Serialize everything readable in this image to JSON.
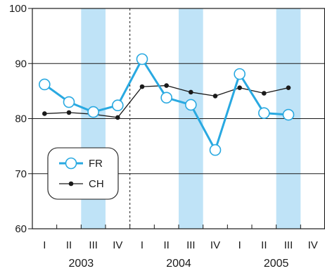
{
  "chart_data": {
    "type": "line",
    "title": "",
    "xlabel": "",
    "ylabel": "",
    "ylim": [
      60,
      100
    ],
    "yticks": [
      60,
      70,
      80,
      90,
      100
    ],
    "x": [
      "I",
      "II",
      "III",
      "IV",
      "I",
      "II",
      "III",
      "IV",
      "I",
      "II",
      "III",
      "IV"
    ],
    "years": [
      "2003",
      "2004",
      "2005"
    ],
    "grid": "horizontal",
    "legend_position": "middle-left",
    "highlighted_quarters": [
      "III",
      "III",
      "III"
    ],
    "divider_after": "IV",
    "series": [
      {
        "name": "FR",
        "color": "#29a9e1",
        "marker": "open-circle",
        "values": [
          86.2,
          83.0,
          81.2,
          82.4,
          90.8,
          83.8,
          82.5,
          74.3,
          88.1,
          81.0,
          80.7,
          null
        ]
      },
      {
        "name": "CH",
        "color": "#1a1a1a",
        "marker": "filled-dot",
        "values": [
          80.9,
          81.1,
          80.8,
          80.2,
          85.8,
          86.0,
          84.8,
          84.1,
          85.6,
          84.6,
          85.6,
          null
        ]
      }
    ]
  }
}
